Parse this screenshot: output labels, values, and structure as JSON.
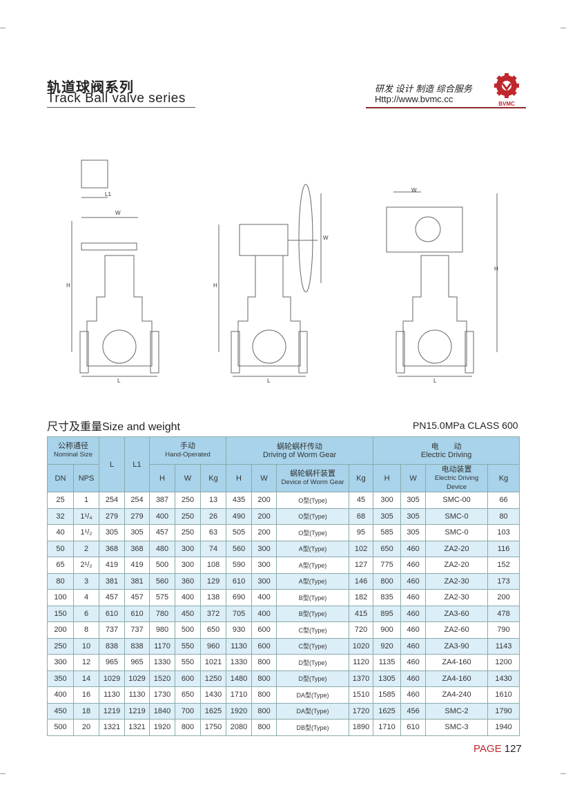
{
  "header": {
    "title_cn": "轨道球阀系列",
    "title_en": "Track Ball valve series",
    "slogan": "研发  设计  制造  综合服务",
    "url": "Http://www.bvmc.cc",
    "logo_text": "BVMC",
    "brand_color": "#c0272d"
  },
  "drawings": {
    "labels": {
      "l1": "L1",
      "w": "W",
      "h": "H",
      "l": "L"
    }
  },
  "section": {
    "title": "尺寸及重量Size and weight",
    "rating": "PN15.0MPa   CLASS 600"
  },
  "table": {
    "groups": {
      "nominal_cn": "公称通径",
      "nominal_en": "Nominal Size",
      "l": "L",
      "l1": "L1",
      "hand_cn": "手动",
      "hand_en": "Hand-Operated",
      "worm_cn": "蜗轮蜗杆传动",
      "worm_en": "Driving of Worm Gear",
      "elec_cn": "电　　动",
      "elec_en": "Electric Driving"
    },
    "sub": {
      "dn": "DN",
      "nps": "NPS",
      "h": "H",
      "w": "W",
      "kg": "Kg",
      "worm_dev_cn": "蜗轮蜗杆装置",
      "worm_dev_en": "Device of Worm Gear",
      "elec_dev_cn": "电动装置",
      "elec_dev_en": "Electric Driving Device"
    },
    "rows": [
      [
        "25",
        "1",
        "254",
        "254",
        "387",
        "250",
        "13",
        "435",
        "200",
        "O型(Type)",
        "45",
        "300",
        "305",
        "SMC-00",
        "66"
      ],
      [
        "32",
        "1¹/₄",
        "279",
        "279",
        "400",
        "250",
        "26",
        "490",
        "200",
        "O型(Type)",
        "68",
        "305",
        "305",
        "SMC-0",
        "80"
      ],
      [
        "40",
        "1¹/₂",
        "305",
        "305",
        "457",
        "250",
        "63",
        "505",
        "200",
        "O型(Type)",
        "95",
        "585",
        "305",
        "SMC-0",
        "103"
      ],
      [
        "50",
        "2",
        "368",
        "368",
        "480",
        "300",
        "74",
        "560",
        "300",
        "A型(Type)",
        "102",
        "650",
        "460",
        "ZA2-20",
        "116"
      ],
      [
        "65",
        "2¹/₂",
        "419",
        "419",
        "500",
        "300",
        "108",
        "590",
        "300",
        "A型(Type)",
        "127",
        "775",
        "460",
        "ZA2-20",
        "152"
      ],
      [
        "80",
        "3",
        "381",
        "381",
        "560",
        "360",
        "129",
        "610",
        "300",
        "A型(Type)",
        "146",
        "800",
        "460",
        "ZA2-30",
        "173"
      ],
      [
        "100",
        "4",
        "457",
        "457",
        "575",
        "400",
        "138",
        "690",
        "400",
        "B型(Type)",
        "182",
        "835",
        "460",
        "ZA2-30",
        "200"
      ],
      [
        "150",
        "6",
        "610",
        "610",
        "780",
        "450",
        "372",
        "705",
        "400",
        "B型(Type)",
        "415",
        "895",
        "460",
        "ZA3-60",
        "478"
      ],
      [
        "200",
        "8",
        "737",
        "737",
        "980",
        "500",
        "650",
        "930",
        "600",
        "C型(Type)",
        "720",
        "900",
        "460",
        "ZA2-60",
        "790"
      ],
      [
        "250",
        "10",
        "838",
        "838",
        "1170",
        "550",
        "960",
        "1130",
        "600",
        "C型(Type)",
        "1020",
        "920",
        "460",
        "ZA3-90",
        "1143"
      ],
      [
        "300",
        "12",
        "965",
        "965",
        "1330",
        "550",
        "1021",
        "1330",
        "800",
        "D型(Type)",
        "1120",
        "1135",
        "460",
        "ZA4-160",
        "1200"
      ],
      [
        "350",
        "14",
        "1029",
        "1029",
        "1520",
        "600",
        "1250",
        "1480",
        "800",
        "D型(Type)",
        "1370",
        "1305",
        "460",
        "ZA4-160",
        "1430"
      ],
      [
        "400",
        "16",
        "1130",
        "1130",
        "1730",
        "650",
        "1430",
        "1710",
        "800",
        "DA型(Type)",
        "1510",
        "1585",
        "460",
        "ZA4-240",
        "1610"
      ],
      [
        "450",
        "18",
        "1219",
        "1219",
        "1840",
        "700",
        "1625",
        "1920",
        "800",
        "DA型(Type)",
        "1720",
        "1625",
        "456",
        "SMC-2",
        "1790"
      ],
      [
        "500",
        "20",
        "1321",
        "1321",
        "1920",
        "800",
        "1750",
        "2080",
        "800",
        "DB型(Type)",
        "1890",
        "1710",
        "610",
        "SMC-3",
        "1940"
      ]
    ]
  },
  "footer": {
    "page_label": "PAGE",
    "page_number": "127"
  }
}
